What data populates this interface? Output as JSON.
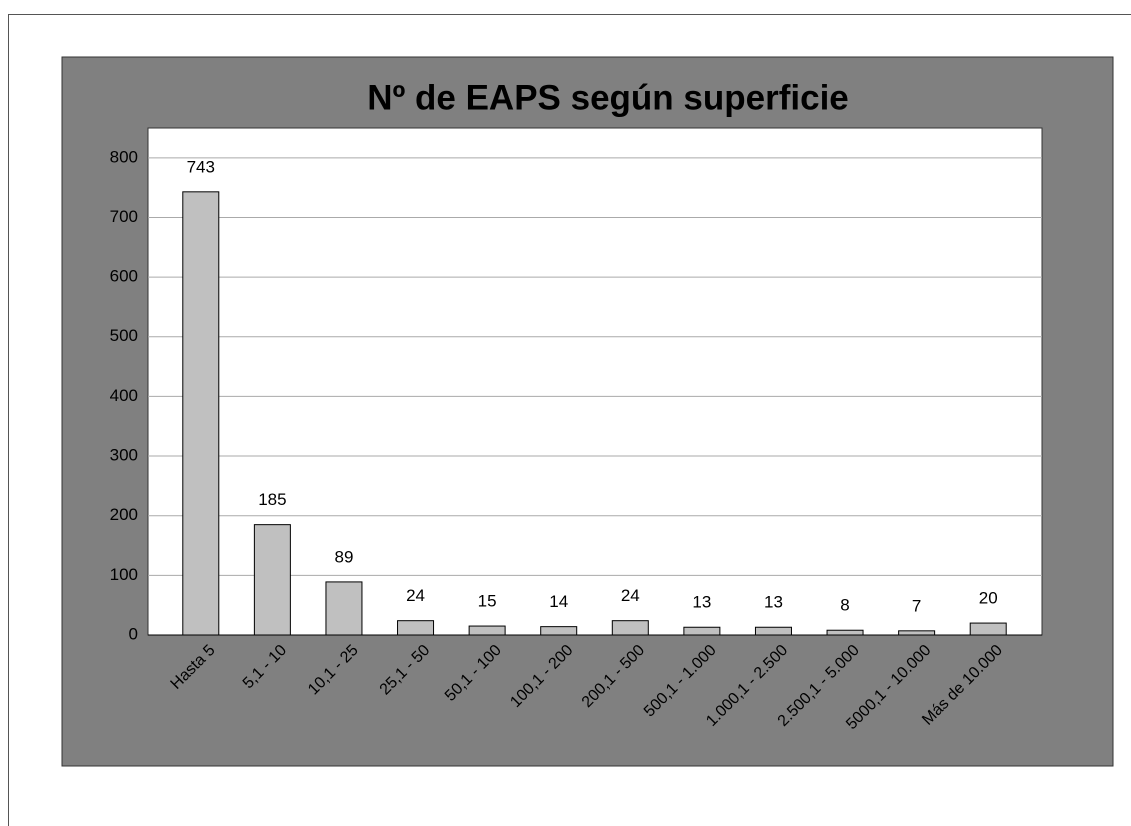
{
  "chart_data": {
    "type": "bar",
    "title": "Nº de EAPS según superficie",
    "categories": [
      "Hasta 5",
      "5,1 - 10",
      "10,1 - 25",
      "25,1 - 50",
      "50,1 - 100",
      "100,1 - 200",
      "200,1 - 500",
      "500,1 - 1.000",
      "1.000,1 - 2.500",
      "2.500,1 - 5.000",
      "5000,1 - 10.000",
      "Más de 10.000"
    ],
    "values": [
      743,
      185,
      89,
      24,
      15,
      14,
      24,
      13,
      13,
      8,
      7,
      20
    ],
    "color": "#c0c0c0",
    "ylim": [
      0,
      850
    ],
    "yticks": [
      0,
      100,
      200,
      300,
      400,
      500,
      600,
      700,
      800
    ],
    "grid": true
  }
}
